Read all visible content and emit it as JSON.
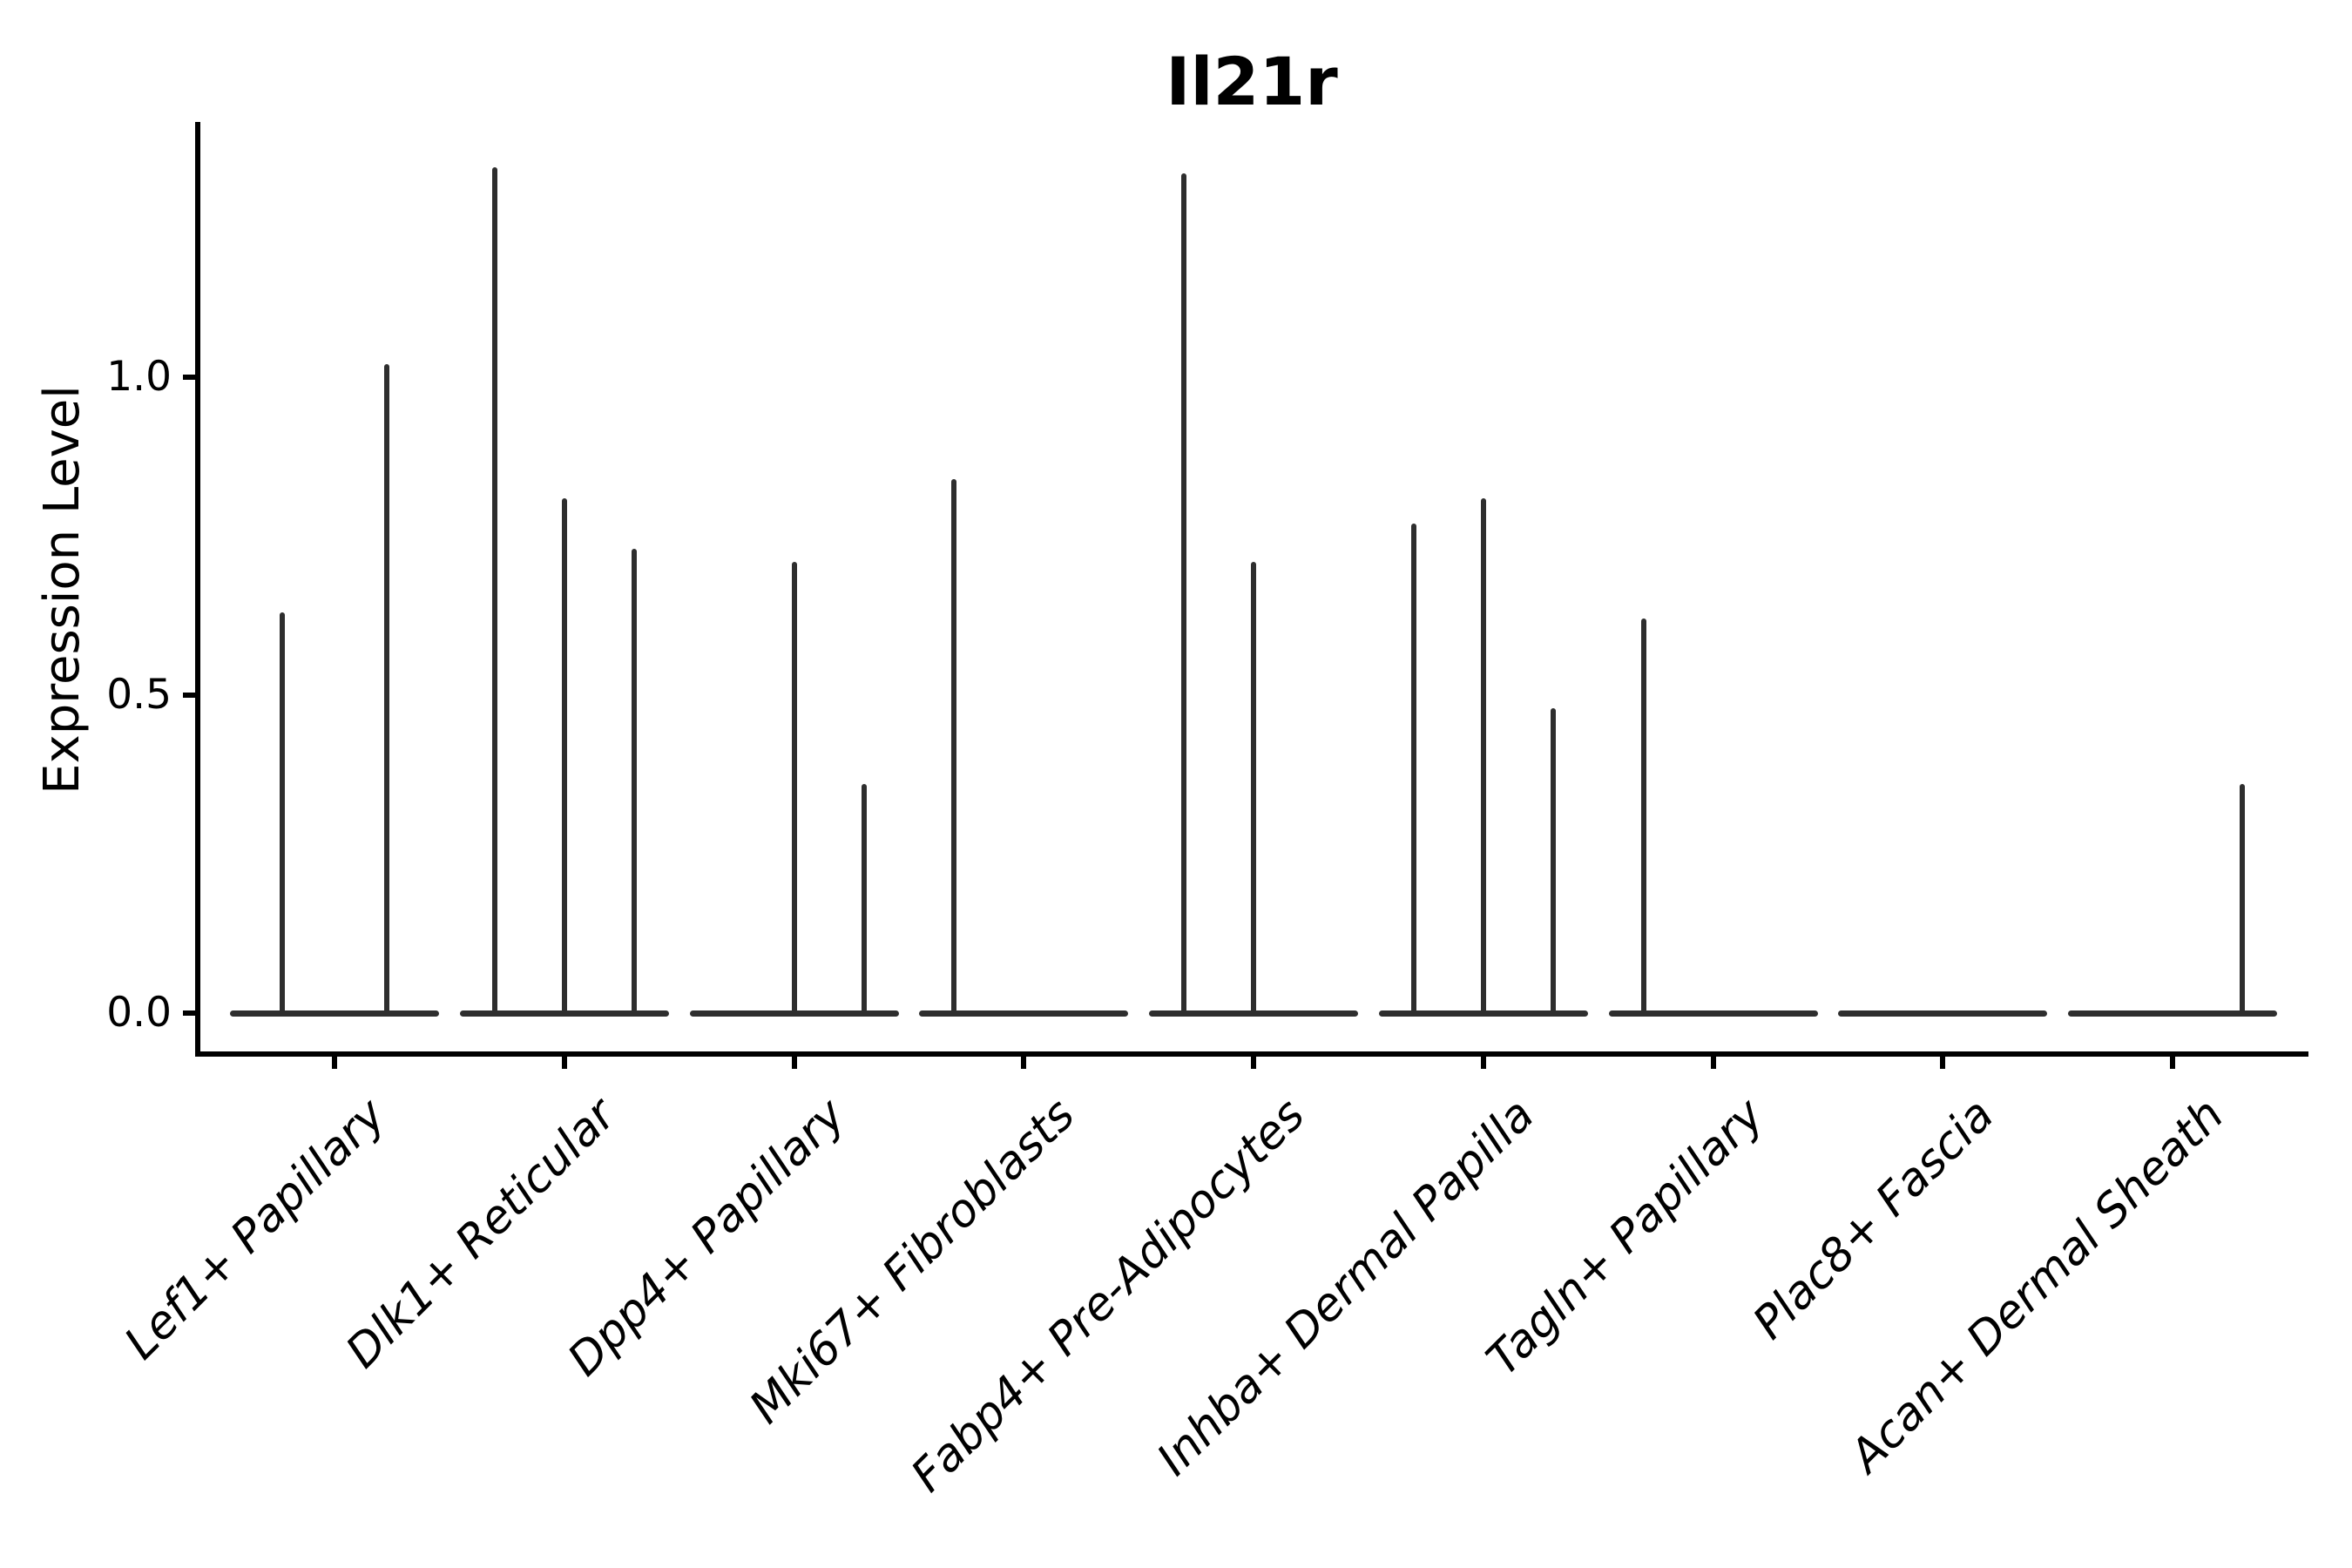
{
  "figure": {
    "title": "Il21r",
    "background": "#ffffff"
  },
  "colors": {
    "violin": "#2e2e2e",
    "axis": "#000000",
    "text": "#000000"
  },
  "chart_data": {
    "type": "violin",
    "title": "Il21r",
    "xlabel": "",
    "ylabel": "Expression Level",
    "yticks": [
      {
        "value": 0.0,
        "label": "0.0"
      },
      {
        "value": 0.5,
        "label": "0.5"
      },
      {
        "value": 1.0,
        "label": "1.0"
      }
    ],
    "ylim": [
      -0.07,
      1.4
    ],
    "grid": false,
    "legend": "none",
    "x_tick_label_rotation_deg": 45,
    "categories": [
      "Lef1+ Papillary",
      "Dlk1+ Reticular",
      "Dpp4+ Papillary",
      "Mki67+ Fibroblasts",
      "Fabp4+ Pre-Adipocytes",
      "Inhba+ Dermal Papilla",
      "Tagln+ Papillary",
      "Plac8+ Fascia",
      "Acan+ Dermal Sheath"
    ],
    "groups": [
      {
        "category": "Lef1+ Papillary",
        "violins": [
          {
            "slot_offset": -60,
            "peak": 0.63
          },
          {
            "slot_offset": 60,
            "peak": 1.02
          }
        ]
      },
      {
        "category": "Dlk1+ Reticular",
        "violins": [
          {
            "slot_offset": -80,
            "peak": 1.33
          },
          {
            "slot_offset": 0,
            "peak": 0.81
          },
          {
            "slot_offset": 80,
            "peak": 0.73
          }
        ]
      },
      {
        "category": "Dpp4+ Papillary",
        "violins": [
          {
            "slot_offset": -80,
            "peak": 0.0
          },
          {
            "slot_offset": 0,
            "peak": 0.71
          },
          {
            "slot_offset": 80,
            "peak": 0.36
          }
        ]
      },
      {
        "category": "Mki67+ Fibroblasts",
        "violins": [
          {
            "slot_offset": -80,
            "peak": 0.84
          },
          {
            "slot_offset": 0,
            "peak": 0.0
          },
          {
            "slot_offset": 80,
            "peak": 0.0
          }
        ]
      },
      {
        "category": "Fabp4+ Pre-Adipocytes",
        "violins": [
          {
            "slot_offset": -80,
            "peak": 1.32
          },
          {
            "slot_offset": 0,
            "peak": 0.71
          },
          {
            "slot_offset": 80,
            "peak": 0.0
          }
        ]
      },
      {
        "category": "Inhba+ Dermal Papilla",
        "violins": [
          {
            "slot_offset": -80,
            "peak": 0.77
          },
          {
            "slot_offset": 0,
            "peak": 0.81
          },
          {
            "slot_offset": 80,
            "peak": 0.48
          }
        ]
      },
      {
        "category": "Tagln+ Papillary",
        "violins": [
          {
            "slot_offset": -80,
            "peak": 0.62
          },
          {
            "slot_offset": 0,
            "peak": 0.0
          },
          {
            "slot_offset": 80,
            "peak": 0.0
          }
        ]
      },
      {
        "category": "Plac8+ Fascia",
        "violins": [
          {
            "slot_offset": -80,
            "peak": 0.0
          },
          {
            "slot_offset": 0,
            "peak": 0.0
          },
          {
            "slot_offset": 80,
            "peak": 0.0
          }
        ]
      },
      {
        "category": "Acan+ Dermal Sheath",
        "violins": [
          {
            "slot_offset": -80,
            "peak": 0.0
          },
          {
            "slot_offset": 0,
            "peak": 0.0
          },
          {
            "slot_offset": 80,
            "peak": 0.36
          }
        ]
      }
    ]
  }
}
